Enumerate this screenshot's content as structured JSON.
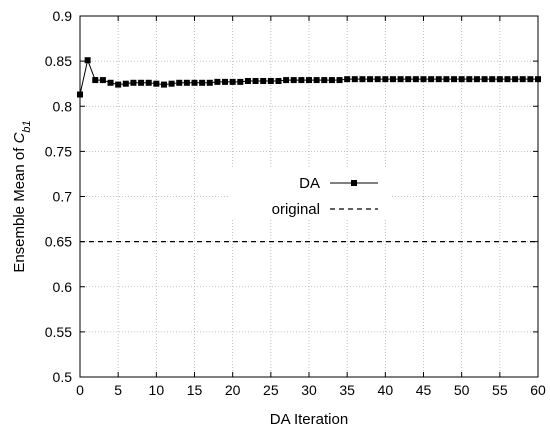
{
  "chart_data": {
    "type": "line",
    "title": "",
    "xlabel": "DA Iteration",
    "ylabel_prefix": "Ensemble Mean of ",
    "ylabel_var": "C",
    "ylabel_sub": "b1",
    "xlim": [
      0,
      60
    ],
    "ylim": [
      0.5,
      0.9
    ],
    "x_ticks": [
      0,
      5,
      10,
      15,
      20,
      25,
      30,
      35,
      40,
      45,
      50,
      55,
      60
    ],
    "y_ticks": [
      0.5,
      0.55,
      0.6,
      0.65,
      0.7,
      0.75,
      0.8,
      0.85,
      0.9
    ],
    "y_tick_labels": [
      "0.5",
      "0.55",
      "0.6",
      "0.65",
      "0.7",
      "0.75",
      "0.8",
      "0.85",
      "0.9"
    ],
    "grid": true,
    "legend_position": "center-right",
    "series": [
      {
        "name": "DA",
        "style": "solid line with square markers",
        "x": [
          0,
          1,
          2,
          3,
          4,
          5,
          6,
          7,
          8,
          9,
          10,
          11,
          12,
          13,
          14,
          15,
          16,
          17,
          18,
          19,
          20,
          21,
          22,
          23,
          24,
          25,
          26,
          27,
          28,
          29,
          30,
          31,
          32,
          33,
          34,
          35,
          36,
          37,
          38,
          39,
          40,
          41,
          42,
          43,
          44,
          45,
          46,
          47,
          48,
          49,
          50,
          51,
          52,
          53,
          54,
          55,
          56,
          57,
          58,
          59,
          60
        ],
        "values": [
          0.813,
          0.851,
          0.829,
          0.829,
          0.826,
          0.824,
          0.825,
          0.826,
          0.826,
          0.826,
          0.825,
          0.824,
          0.825,
          0.826,
          0.826,
          0.826,
          0.826,
          0.826,
          0.827,
          0.827,
          0.827,
          0.827,
          0.828,
          0.828,
          0.828,
          0.828,
          0.828,
          0.829,
          0.829,
          0.829,
          0.829,
          0.829,
          0.829,
          0.829,
          0.829,
          0.83,
          0.83,
          0.83,
          0.83,
          0.83,
          0.83,
          0.83,
          0.83,
          0.83,
          0.83,
          0.83,
          0.83,
          0.83,
          0.83,
          0.83,
          0.83,
          0.83,
          0.83,
          0.83,
          0.83,
          0.83,
          0.83,
          0.83,
          0.83,
          0.83,
          0.83
        ]
      },
      {
        "name": "original",
        "style": "dashed line",
        "x": [
          0,
          60
        ],
        "values": [
          0.65,
          0.65
        ]
      }
    ]
  },
  "colors": {
    "line": "#000000",
    "grid": "#b0b0b0",
    "background": "#ffffff"
  }
}
